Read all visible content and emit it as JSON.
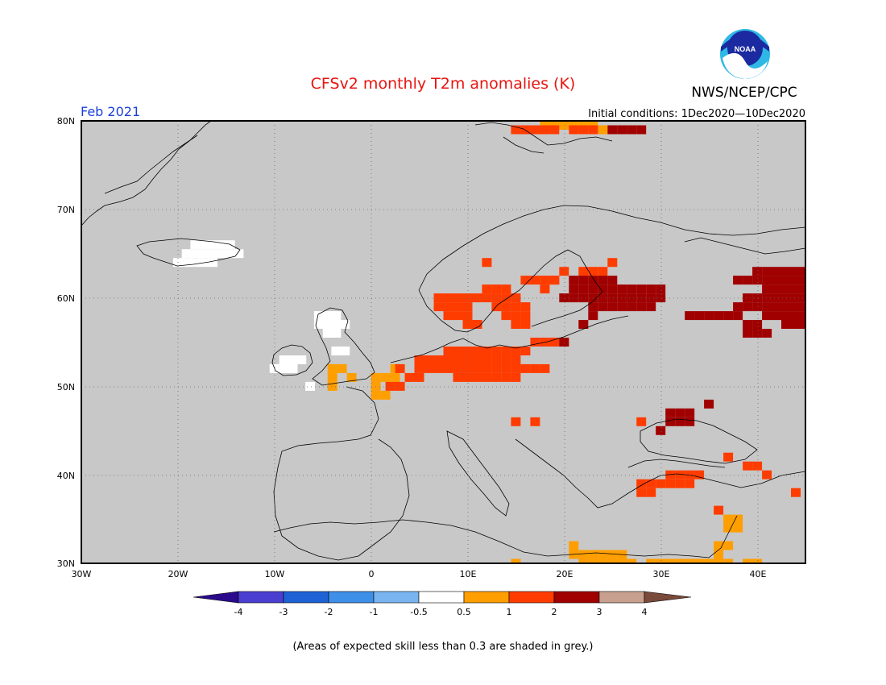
{
  "header": {
    "title": "CFSv2 monthly T2m anomalies (K)",
    "agency": "NWS/NCEP/CPC",
    "logo_text": "NOAA",
    "valid_month": "Feb 2021",
    "initial_conditions": "Initial conditions: 1Dec2020—10Dec2020"
  },
  "map": {
    "lat_labels": [
      "80N",
      "70N",
      "60N",
      "50N",
      "40N",
      "30N"
    ],
    "lon_labels": [
      "30W",
      "20W",
      "10W",
      "0",
      "10E",
      "20E",
      "30E",
      "40E"
    ],
    "extent": {
      "lon": [
        -30,
        45
      ],
      "lat": [
        30,
        80
      ]
    },
    "land_mask_color": "#c8c8c8",
    "gridlines": "dotted",
    "anomaly_fields": [
      {
        "name": "Greenland/Iceland low-skill white",
        "category": "near-zero",
        "cells": [
          [
            -18.2,
            66
          ],
          [
            -17.3,
            66
          ],
          [
            -16.4,
            66
          ],
          [
            -15.5,
            66
          ],
          [
            -14.6,
            66
          ],
          [
            -19.1,
            65
          ],
          [
            -18.2,
            65
          ],
          [
            -17.3,
            65
          ],
          [
            -16.4,
            65
          ],
          [
            -15.5,
            65
          ],
          [
            -14.6,
            65
          ],
          [
            -13.7,
            65
          ],
          [
            -20,
            64
          ],
          [
            -19.1,
            64
          ],
          [
            -18.2,
            64
          ],
          [
            -17.3,
            64
          ],
          [
            -16.4,
            64
          ]
        ]
      },
      {
        "name": "UK/Ireland white",
        "category": "near-zero",
        "cells": [
          [
            -5.4,
            58
          ],
          [
            -4.5,
            58
          ],
          [
            -3.6,
            58
          ],
          [
            -5.4,
            57
          ],
          [
            -4.5,
            57
          ],
          [
            -3.6,
            57
          ],
          [
            -2.7,
            57
          ],
          [
            -4.5,
            56
          ],
          [
            -3.6,
            56
          ],
          [
            -9,
            53
          ],
          [
            -8.1,
            53
          ],
          [
            -7.2,
            53
          ],
          [
            -10,
            52
          ],
          [
            -9,
            52
          ],
          [
            -8.1,
            52
          ],
          [
            -3.6,
            54
          ],
          [
            -2.7,
            54
          ],
          [
            -6.3,
            50
          ]
        ]
      },
      {
        "name": "Britain/France 0.5-1",
        "category": "0.5-1",
        "cells": [
          [
            -4,
            52
          ],
          [
            -3,
            52
          ],
          [
            -2,
            51
          ],
          [
            -4,
            51
          ],
          [
            0.5,
            51
          ],
          [
            1.5,
            51
          ],
          [
            -4,
            50
          ],
          [
            0.5,
            50
          ],
          [
            2.5,
            52
          ],
          [
            2.5,
            51
          ],
          [
            0.5,
            49
          ],
          [
            1.5,
            49
          ]
        ]
      },
      {
        "name": "North Sea/Scandinavia 1-2",
        "category": "1-2",
        "cells": [
          [
            5,
            53
          ],
          [
            6,
            53
          ],
          [
            7,
            53
          ],
          [
            8,
            53
          ],
          [
            9,
            53
          ],
          [
            10,
            53
          ],
          [
            11,
            53
          ],
          [
            12,
            53
          ],
          [
            13,
            53
          ],
          [
            14,
            53
          ],
          [
            15,
            53
          ],
          [
            5,
            52
          ],
          [
            6,
            52
          ],
          [
            7,
            52
          ],
          [
            8,
            52
          ],
          [
            9,
            52
          ],
          [
            10,
            52
          ],
          [
            11,
            52
          ],
          [
            12,
            52
          ],
          [
            13,
            52
          ],
          [
            14,
            52
          ],
          [
            15,
            52
          ],
          [
            16,
            52
          ],
          [
            17,
            52
          ],
          [
            18,
            52
          ],
          [
            4,
            51
          ],
          [
            5,
            51
          ],
          [
            9,
            51
          ],
          [
            10,
            51
          ],
          [
            11,
            51
          ],
          [
            12,
            51
          ],
          [
            13,
            51
          ],
          [
            14,
            51
          ],
          [
            15,
            51
          ],
          [
            8,
            54
          ],
          [
            9,
            54
          ],
          [
            10,
            54
          ],
          [
            11,
            54
          ],
          [
            12,
            54
          ],
          [
            13,
            54
          ],
          [
            14,
            54
          ],
          [
            15,
            54
          ],
          [
            16,
            54
          ],
          [
            7,
            60
          ],
          [
            8,
            60
          ],
          [
            9,
            60
          ],
          [
            10,
            60
          ],
          [
            11,
            60
          ],
          [
            12,
            60
          ],
          [
            13,
            60
          ],
          [
            14,
            60
          ],
          [
            15,
            60
          ],
          [
            7,
            59
          ],
          [
            8,
            59
          ],
          [
            9,
            59
          ],
          [
            10,
            59
          ],
          [
            13,
            59
          ],
          [
            14,
            59
          ],
          [
            15,
            59
          ],
          [
            16,
            59
          ],
          [
            8,
            58
          ],
          [
            9,
            58
          ],
          [
            10,
            58
          ],
          [
            14,
            58
          ],
          [
            15,
            58
          ],
          [
            16,
            58
          ],
          [
            10,
            57
          ],
          [
            11,
            57
          ],
          [
            15,
            57
          ],
          [
            16,
            57
          ],
          [
            12,
            61
          ],
          [
            13,
            61
          ],
          [
            14,
            61
          ],
          [
            16,
            62
          ],
          [
            17,
            62
          ],
          [
            18,
            62
          ],
          [
            19,
            62
          ],
          [
            18,
            61
          ],
          [
            19,
            62
          ],
          [
            12,
            64
          ],
          [
            20,
            63
          ],
          [
            22,
            63
          ],
          [
            23,
            63
          ],
          [
            24,
            63
          ],
          [
            25,
            64
          ],
          [
            17,
            55
          ],
          [
            18,
            55
          ],
          [
            19,
            55
          ],
          [
            20,
            55
          ],
          [
            2,
            50
          ],
          [
            3,
            50
          ],
          [
            3,
            52
          ],
          [
            15,
            46
          ],
          [
            17,
            46
          ],
          [
            31,
            40
          ],
          [
            32,
            40
          ],
          [
            33,
            40
          ],
          [
            34,
            40
          ],
          [
            28,
            39
          ],
          [
            29,
            39
          ],
          [
            30,
            39
          ],
          [
            31,
            39
          ],
          [
            32,
            39
          ],
          [
            33,
            39
          ],
          [
            28,
            38
          ],
          [
            29,
            38
          ],
          [
            36,
            36
          ],
          [
            37,
            42
          ],
          [
            39,
            41
          ],
          [
            40,
            41
          ],
          [
            41,
            40
          ],
          [
            44,
            38
          ],
          [
            28,
            46
          ]
        ]
      },
      {
        "name": "Eastern Europe/Russia 2-3",
        "category": "2-3",
        "cells": [
          [
            21,
            61
          ],
          [
            22,
            61
          ],
          [
            23,
            61
          ],
          [
            24,
            61
          ],
          [
            25,
            61
          ],
          [
            26,
            61
          ],
          [
            27,
            61
          ],
          [
            28,
            61
          ],
          [
            29,
            61
          ],
          [
            30,
            61
          ],
          [
            21,
            62
          ],
          [
            22,
            62
          ],
          [
            23,
            62
          ],
          [
            24,
            62
          ],
          [
            25,
            62
          ],
          [
            20,
            60
          ],
          [
            21,
            60
          ],
          [
            22,
            60
          ],
          [
            23,
            60
          ],
          [
            24,
            60
          ],
          [
            25,
            60
          ],
          [
            26,
            60
          ],
          [
            27,
            60
          ],
          [
            28,
            60
          ],
          [
            29,
            60
          ],
          [
            30,
            60
          ],
          [
            23,
            59
          ],
          [
            24,
            59
          ],
          [
            25,
            59
          ],
          [
            26,
            59
          ],
          [
            27,
            59
          ],
          [
            28,
            59
          ],
          [
            29,
            59
          ],
          [
            23,
            58
          ],
          [
            22,
            57
          ],
          [
            20,
            55
          ],
          [
            40,
            63
          ],
          [
            41,
            63
          ],
          [
            42,
            63
          ],
          [
            43,
            63
          ],
          [
            44,
            63
          ],
          [
            45,
            63
          ],
          [
            38,
            62
          ],
          [
            39,
            62
          ],
          [
            40,
            62
          ],
          [
            41,
            62
          ],
          [
            42,
            62
          ],
          [
            43,
            62
          ],
          [
            44,
            62
          ],
          [
            45,
            62
          ],
          [
            41,
            61
          ],
          [
            42,
            61
          ],
          [
            43,
            61
          ],
          [
            44,
            61
          ],
          [
            45,
            61
          ],
          [
            39,
            60
          ],
          [
            40,
            60
          ],
          [
            41,
            60
          ],
          [
            42,
            60
          ],
          [
            43,
            60
          ],
          [
            44,
            60
          ],
          [
            45,
            60
          ],
          [
            38,
            59
          ],
          [
            39,
            59
          ],
          [
            40,
            59
          ],
          [
            41,
            59
          ],
          [
            42,
            59
          ],
          [
            43,
            59
          ],
          [
            44,
            59
          ],
          [
            45,
            59
          ],
          [
            33,
            58
          ],
          [
            34,
            58
          ],
          [
            35,
            58
          ],
          [
            36,
            58
          ],
          [
            37,
            58
          ],
          [
            38,
            58
          ],
          [
            41,
            58
          ],
          [
            42,
            58
          ],
          [
            43,
            58
          ],
          [
            44,
            58
          ],
          [
            45,
            58
          ],
          [
            43,
            57
          ],
          [
            44,
            57
          ],
          [
            45,
            57
          ],
          [
            39,
            57
          ],
          [
            40,
            57
          ],
          [
            39,
            56
          ],
          [
            40,
            56
          ],
          [
            41,
            56
          ],
          [
            31,
            47
          ],
          [
            32,
            47
          ],
          [
            33,
            47
          ],
          [
            31,
            46
          ],
          [
            32,
            46
          ],
          [
            33,
            46
          ],
          [
            30,
            45
          ],
          [
            35,
            48
          ],
          [
            24,
            79
          ],
          [
            25,
            79
          ],
          [
            26,
            79
          ],
          [
            27,
            79
          ],
          [
            28,
            79
          ],
          [
            17,
            79
          ]
        ]
      },
      {
        "name": "Svalbard/ North Africa 0.5-1",
        "category": "0.5-1",
        "cells": [
          [
            18,
            80
          ],
          [
            19,
            80
          ],
          [
            20,
            80
          ],
          [
            21,
            80
          ],
          [
            22,
            80
          ],
          [
            23,
            80
          ],
          [
            24,
            79
          ],
          [
            21,
            32
          ],
          [
            22,
            31
          ],
          [
            23,
            31
          ],
          [
            24,
            31
          ],
          [
            25,
            31
          ],
          [
            26,
            31
          ],
          [
            21,
            31
          ],
          [
            22,
            30
          ],
          [
            23,
            30
          ],
          [
            24,
            30
          ],
          [
            25,
            30
          ],
          [
            26,
            30
          ],
          [
            27,
            30
          ],
          [
            29,
            30
          ],
          [
            30,
            30
          ],
          [
            31,
            30
          ],
          [
            32,
            30
          ],
          [
            33,
            30
          ],
          [
            34,
            30
          ],
          [
            15,
            30
          ],
          [
            36,
            31
          ],
          [
            36,
            32
          ],
          [
            37,
            32
          ],
          [
            37,
            34
          ],
          [
            38,
            34
          ],
          [
            37,
            35
          ],
          [
            38,
            35
          ],
          [
            39,
            30
          ],
          [
            40,
            30
          ],
          [
            36,
            30
          ],
          [
            37,
            30
          ],
          [
            35,
            30
          ]
        ]
      },
      {
        "name": "Svalbard 1-2",
        "category": "1-2",
        "cells": [
          [
            15,
            79
          ],
          [
            16,
            79
          ],
          [
            17,
            79
          ],
          [
            18,
            79
          ],
          [
            19,
            79
          ],
          [
            21,
            79
          ],
          [
            22,
            79
          ],
          [
            23,
            79
          ]
        ]
      }
    ]
  },
  "colorbar": {
    "labels": [
      "-4",
      "-3",
      "-2",
      "-1",
      "-0.5",
      "0.5",
      "1",
      "2",
      "3",
      "4"
    ],
    "colors": {
      "below-4": "#2b0b8c",
      "-4 to -3": "#4a3fd0",
      "-3 to -2": "#1e63d6",
      "-2 to -1": "#3e8fe8",
      "-1 to -0.5": "#7ab4f0",
      "-0.5 to 0.5": "#ffffff",
      "0.5-1": "#ff9e00",
      "1-2": "#ff3c00",
      "2-3": "#a00000",
      "3-4": "#c8a090",
      "above 4": "#7a4a3a"
    }
  },
  "footer": {
    "note": "(Areas of expected skill less than 0.3 are shaded in grey.)"
  }
}
